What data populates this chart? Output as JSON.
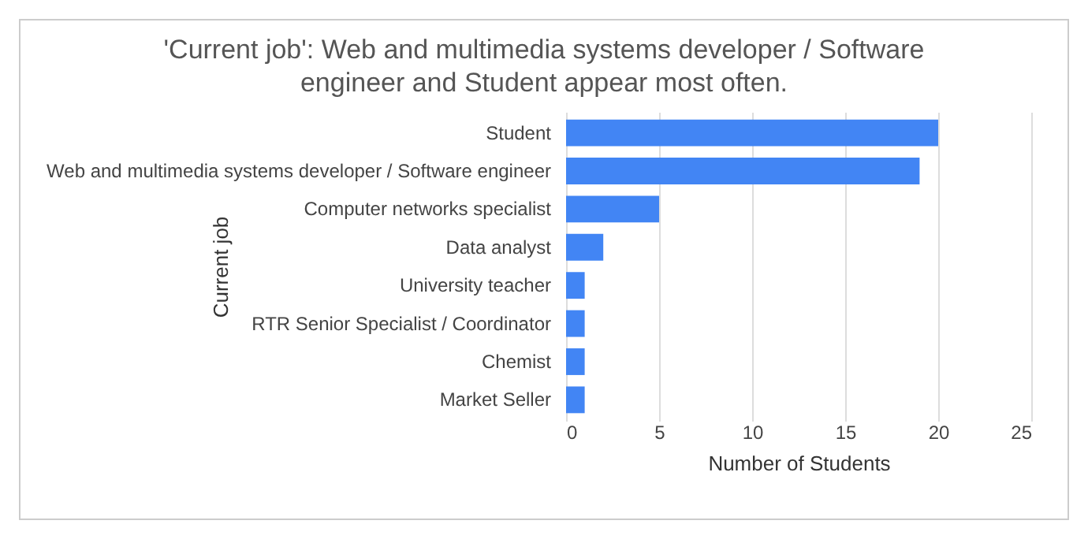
{
  "chart_data": {
    "type": "bar",
    "orientation": "horizontal",
    "title": "'Current job': Web and multimedia systems developer / Software engineer and Student appear most often.",
    "categories": [
      "Student",
      "Web and multimedia systems developer / Software engineer",
      "Computer networks specialist",
      "Data analyst",
      "University teacher",
      "RTR Senior Specialist / Coordinator",
      "Chemist",
      "Market Seller"
    ],
    "values": [
      20,
      19,
      5,
      2,
      1,
      1,
      1,
      1
    ],
    "color": "#4285f4",
    "xlabel": "Number of Students",
    "ylabel": "Current job",
    "xlim": [
      0,
      25
    ],
    "xticks": [
      0,
      5,
      10,
      15,
      20,
      25
    ],
    "grid": "x"
  }
}
